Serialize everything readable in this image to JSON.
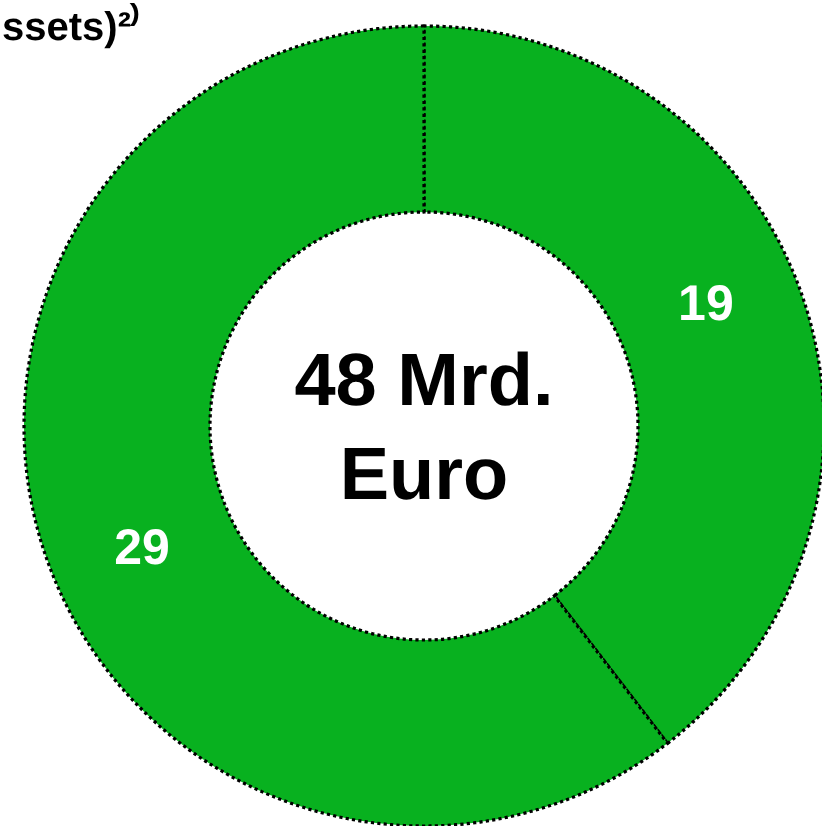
{
  "chart_data": {
    "type": "donut",
    "title": "ssets)²⁾",
    "categories": [
      null,
      null
    ],
    "values": [
      19,
      29
    ],
    "colors": [
      "#08b11f",
      "#08b11f"
    ],
    "data_labels": true,
    "line_style": "dotted",
    "annotations": [
      "48 Mrd.\nEuro"
    ]
  }
}
